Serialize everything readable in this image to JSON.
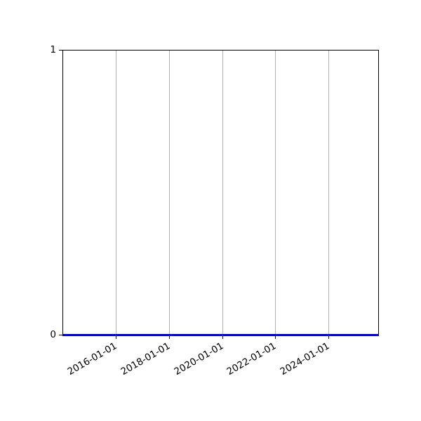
{
  "chart_data": {
    "type": "line",
    "title": "",
    "xlabel": "",
    "ylabel": "",
    "x_tick_labels": [
      "2016-01-01",
      "2018-01-01",
      "2020-01-01",
      "2022-01-01",
      "2024-01-01"
    ],
    "y_tick_labels": [
      "0",
      "1"
    ],
    "ylim": [
      0,
      1
    ],
    "x_range_approx": [
      "2014-01",
      "2025-12"
    ],
    "grid": "vertical gridlines only",
    "grid_color": "#b0b0b0",
    "line_color": "#0000b4",
    "legend": "none",
    "series": [
      {
        "constant_value": 0,
        "color": "#0000b4",
        "description": "flat line at y=0 spanning entire x-range"
      }
    ]
  }
}
